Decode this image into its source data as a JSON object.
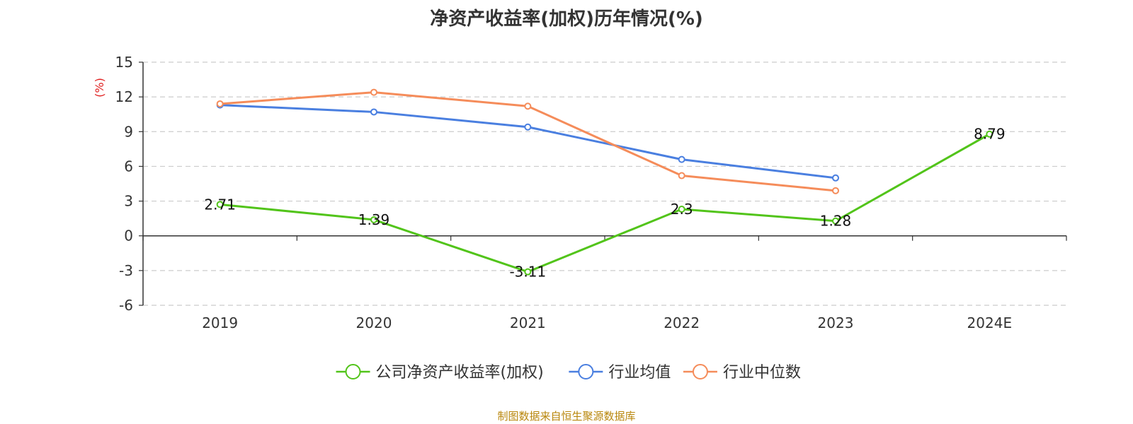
{
  "chart_data": {
    "type": "line",
    "title": "净资产收益率(加权)历年情况(%)",
    "ylabel": "(%)",
    "xlabel": "",
    "categories": [
      "2019",
      "2020",
      "2021",
      "2022",
      "2023",
      "2024E"
    ],
    "ylim": [
      -6,
      15
    ],
    "yticks": [
      15,
      12,
      9,
      6,
      3,
      0,
      -3,
      -6
    ],
    "grid": true,
    "legend_position": "bottom",
    "series": [
      {
        "name": "公司净资产收益率(加权)",
        "color": "#52c41a",
        "values": [
          2.71,
          1.39,
          -3.11,
          2.3,
          1.28,
          8.79
        ],
        "labels": [
          "2.71",
          "1.39",
          "-3.11",
          "2.3",
          "1.28",
          "8.79"
        ]
      },
      {
        "name": "行业均值",
        "color": "#4a7fe0",
        "values": [
          11.3,
          10.7,
          9.4,
          6.6,
          5.0,
          null
        ]
      },
      {
        "name": "行业中位数",
        "color": "#f58c5a",
        "values": [
          11.4,
          12.4,
          11.2,
          5.2,
          3.9,
          null
        ]
      }
    ]
  },
  "source": "制图数据来自恒生聚源数据库"
}
